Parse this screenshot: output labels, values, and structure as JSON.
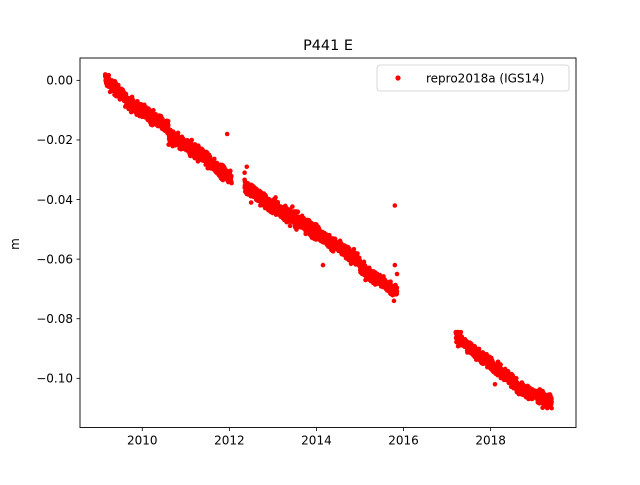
{
  "chart_data": {
    "type": "scatter",
    "title": "P441 E",
    "xlabel": "",
    "ylabel": "m",
    "xlim": [
      2008.57,
      2019.96
    ],
    "ylim": [
      -0.1165,
      0.0075
    ],
    "x_ticks": [
      2010,
      2012,
      2014,
      2016,
      2018
    ],
    "x_tick_labels": [
      "2010",
      "2012",
      "2014",
      "2016",
      "2018"
    ],
    "y_ticks": [
      0.0,
      -0.02,
      -0.04,
      -0.06,
      -0.08,
      -0.1
    ],
    "y_tick_labels": [
      "0.00",
      "−0.02",
      "−0.04",
      "−0.06",
      "−0.08",
      "−0.10"
    ],
    "grid": false,
    "legend_position": "top-right",
    "series": [
      {
        "name": "repro2018a (IGS14)",
        "color": "#ff0000",
        "marker": "circle",
        "segments": [
          {
            "x_start": 2009.15,
            "x_end": 2009.7,
            "y_start": 0.0005,
            "y_end": -0.0075,
            "noise": 0.0015
          },
          {
            "x_start": 2009.7,
            "x_end": 2010.6,
            "y_start": -0.0075,
            "y_end": -0.016,
            "noise": 0.0015
          },
          {
            "x_start": 2010.6,
            "x_end": 2011.5,
            "y_start": -0.019,
            "y_end": -0.026,
            "noise": 0.0018
          },
          {
            "x_start": 2011.5,
            "x_end": 2012.05,
            "y_start": -0.027,
            "y_end": -0.033,
            "noise": 0.0015
          },
          {
            "x_start": 2012.35,
            "x_end": 2013.0,
            "y_start": -0.035,
            "y_end": -0.043,
            "noise": 0.0018
          },
          {
            "x_start": 2013.0,
            "x_end": 2014.0,
            "y_start": -0.042,
            "y_end": -0.051,
            "noise": 0.0018
          },
          {
            "x_start": 2014.0,
            "x_end": 2015.0,
            "y_start": -0.051,
            "y_end": -0.061,
            "noise": 0.0015
          },
          {
            "x_start": 2015.0,
            "x_end": 2015.85,
            "y_start": -0.063,
            "y_end": -0.071,
            "noise": 0.0015
          },
          {
            "x_start": 2017.2,
            "x_end": 2017.8,
            "y_start": -0.086,
            "y_end": -0.093,
            "noise": 0.0015
          },
          {
            "x_start": 2017.8,
            "x_end": 2018.6,
            "y_start": -0.093,
            "y_end": -0.102,
            "noise": 0.0015
          },
          {
            "x_start": 2018.6,
            "x_end": 2019.4,
            "y_start": -0.103,
            "y_end": -0.108,
            "noise": 0.0015
          }
        ],
        "extra_points": [
          {
            "x": 2009.15,
            "y": 0.002
          },
          {
            "x": 2011.95,
            "y": -0.018
          },
          {
            "x": 2012.4,
            "y": -0.029
          },
          {
            "x": 2012.35,
            "y": -0.031
          },
          {
            "x": 2012.5,
            "y": -0.041
          },
          {
            "x": 2014.15,
            "y": -0.062
          },
          {
            "x": 2015.8,
            "y": -0.042
          },
          {
            "x": 2015.8,
            "y": -0.062
          },
          {
            "x": 2015.85,
            "y": -0.065
          },
          {
            "x": 2015.78,
            "y": -0.074
          },
          {
            "x": 2018.1,
            "y": -0.102
          },
          {
            "x": 2019.3,
            "y": -0.11
          },
          {
            "x": 2019.4,
            "y": -0.11
          }
        ]
      }
    ]
  }
}
